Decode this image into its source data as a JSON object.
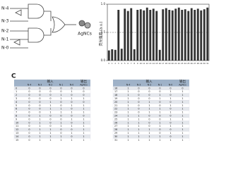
{
  "panel_label": "C",
  "diagram": {
    "inputs": [
      "N-4",
      "N-3",
      "N-2",
      "N-1",
      "N-0"
    ],
    "output": "AgNCs"
  },
  "chart_data": {
    "type": "bar",
    "y_label": "荧光强度 (a.u.)",
    "categories": [
      "0",
      "1",
      "2",
      "3",
      "4",
      "5",
      "6",
      "7",
      "8",
      "9",
      "10",
      "11",
      "12",
      "13",
      "14",
      "15",
      "16",
      "17",
      "18",
      "19",
      "20",
      "21",
      "22",
      "23",
      "24",
      "25",
      "26",
      "27",
      "28",
      "29",
      "30",
      "31"
    ],
    "values": [
      0.18,
      0.2,
      0.19,
      0.9,
      0.21,
      0.92,
      0.88,
      0.93,
      0.2,
      0.9,
      0.91,
      0.89,
      0.94,
      0.9,
      0.92,
      0.88,
      0.19,
      0.91,
      0.93,
      0.9,
      0.89,
      0.92,
      0.94,
      0.9,
      0.91,
      0.88,
      0.93,
      0.9,
      0.92,
      0.89,
      0.91,
      0.94
    ],
    "color": "#333333",
    "ylim": [
      0,
      1
    ],
    "yticks": [
      {
        "value": 0,
        "label": "0.0"
      },
      {
        "value": 0.5,
        "label": "0.5"
      },
      {
        "value": 1,
        "label": "1.0"
      }
    ],
    "threshold": 0.5
  },
  "tables": {
    "group_headers": [
      "输入",
      "输出"
    ],
    "headers": [
      "N-4",
      "N-3",
      "N-2",
      "N-1",
      "N-0",
      "AgNCs"
    ],
    "left": [
      [
        0,
        0,
        0,
        0,
        0,
        0,
        0
      ],
      [
        1,
        0,
        0,
        0,
        0,
        1,
        0
      ],
      [
        2,
        0,
        0,
        0,
        1,
        0,
        0
      ],
      [
        3,
        0,
        0,
        0,
        1,
        1,
        1
      ],
      [
        4,
        0,
        0,
        1,
        0,
        0,
        0
      ],
      [
        5,
        0,
        0,
        1,
        0,
        1,
        1
      ],
      [
        6,
        0,
        0,
        1,
        1,
        0,
        1
      ],
      [
        7,
        0,
        0,
        1,
        1,
        1,
        1
      ],
      [
        8,
        0,
        1,
        0,
        0,
        0,
        0
      ],
      [
        9,
        0,
        1,
        0,
        0,
        1,
        1
      ],
      [
        10,
        0,
        1,
        0,
        1,
        0,
        1
      ],
      [
        11,
        0,
        1,
        0,
        1,
        1,
        1
      ],
      [
        12,
        0,
        1,
        1,
        0,
        0,
        1
      ],
      [
        13,
        0,
        1,
        1,
        0,
        1,
        1
      ],
      [
        14,
        0,
        1,
        1,
        1,
        0,
        1
      ],
      [
        15,
        0,
        1,
        1,
        1,
        1,
        1
      ]
    ],
    "right": [
      [
        16,
        1,
        0,
        0,
        0,
        0,
        0
      ],
      [
        17,
        1,
        0,
        0,
        0,
        1,
        1
      ],
      [
        18,
        1,
        0,
        0,
        1,
        0,
        1
      ],
      [
        19,
        1,
        0,
        0,
        1,
        1,
        1
      ],
      [
        20,
        1,
        0,
        1,
        0,
        0,
        1
      ],
      [
        21,
        1,
        0,
        1,
        0,
        1,
        1
      ],
      [
        22,
        1,
        0,
        1,
        1,
        0,
        1
      ],
      [
        23,
        1,
        0,
        1,
        1,
        1,
        1
      ],
      [
        24,
        1,
        1,
        0,
        0,
        0,
        1
      ],
      [
        25,
        1,
        1,
        0,
        0,
        1,
        1
      ],
      [
        26,
        1,
        1,
        0,
        1,
        0,
        1
      ],
      [
        27,
        1,
        1,
        0,
        1,
        1,
        1
      ],
      [
        28,
        1,
        1,
        1,
        0,
        0,
        1
      ],
      [
        29,
        1,
        1,
        1,
        0,
        1,
        1
      ],
      [
        30,
        1,
        1,
        1,
        1,
        0,
        1
      ],
      [
        31,
        1,
        1,
        1,
        1,
        1,
        1
      ]
    ]
  }
}
